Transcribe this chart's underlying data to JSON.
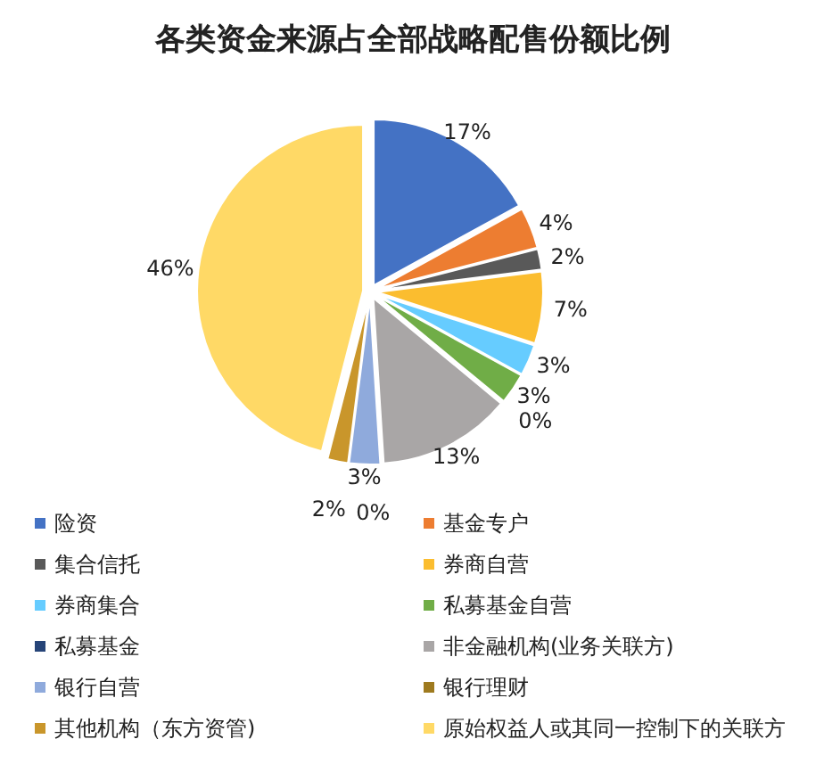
{
  "chart_data": {
    "type": "pie",
    "title": "各类资金来源占全部战略配售份额比例",
    "categories": [
      "险资",
      "基金专户",
      "集合信托",
      "券商自营",
      "券商集合",
      "私募基金自营",
      "私募基金",
      "非金融机构(业务关联方)",
      "银行自营",
      "银行理财",
      "其他机构（东方资管)",
      "原始权益人或其同一控制下的关联方"
    ],
    "values": [
      17,
      4,
      2,
      7,
      3,
      3,
      0,
      13,
      3,
      0,
      2,
      46
    ],
    "value_labels": [
      "17%",
      "4%",
      "2%",
      "7%",
      "3%",
      "3%",
      "0%",
      "13%",
      "3%",
      "0%",
      "2%",
      "46%"
    ],
    "colors": [
      "#4472c4",
      "#ed7d31",
      "#595959",
      "#fbbd2f",
      "#66ccff",
      "#70ad47",
      "#264478",
      "#a9a6a6",
      "#8faadc",
      "#9e7a1f",
      "#c9962b",
      "#ffd966"
    ],
    "legend": "bottom"
  }
}
